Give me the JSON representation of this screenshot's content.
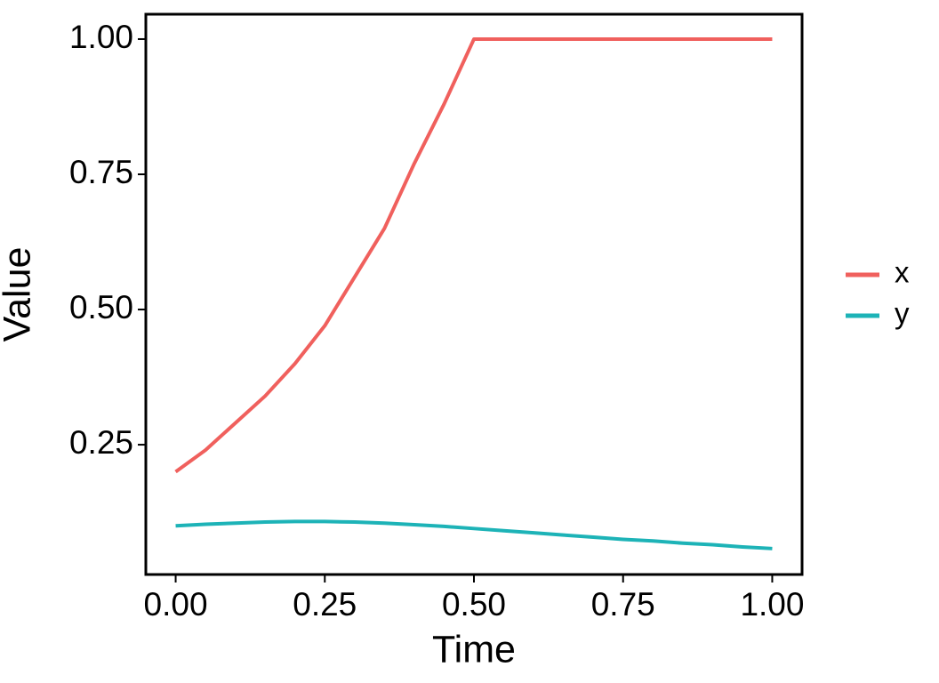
{
  "chart_data": {
    "type": "line",
    "x_label": "Time",
    "y_label": "Value",
    "x": [
      0,
      0.05,
      0.1,
      0.15,
      0.2,
      0.25,
      0.3,
      0.35,
      0.4,
      0.45,
      0.5,
      0.55,
      0.6,
      0.65,
      0.7,
      0.75,
      0.8,
      0.85,
      0.9,
      0.95,
      1.0
    ],
    "series": [
      {
        "name": "x",
        "color": "#f0605d",
        "values": [
          0.2,
          0.24,
          0.29,
          0.34,
          0.4,
          0.47,
          0.56,
          0.65,
          0.77,
          0.88,
          1.0,
          1.0,
          1.0,
          1.0,
          1.0,
          1.0,
          1.0,
          1.0,
          1.0,
          1.0,
          1.0
        ]
      },
      {
        "name": "y",
        "color": "#1db3b7",
        "values": [
          0.1,
          0.103,
          0.105,
          0.107,
          0.108,
          0.108,
          0.107,
          0.105,
          0.102,
          0.099,
          0.095,
          0.091,
          0.087,
          0.083,
          0.079,
          0.075,
          0.072,
          0.068,
          0.065,
          0.061,
          0.058
        ]
      }
    ],
    "xlim": [
      -0.05,
      1.05
    ],
    "ylim": [
      0.01,
      1.046
    ],
    "xticks": [
      {
        "value": 0,
        "label": "0.00"
      },
      {
        "value": 0.25,
        "label": "0.25"
      },
      {
        "value": 0.5,
        "label": "0.50"
      },
      {
        "value": 0.75,
        "label": "0.75"
      },
      {
        "value": 1,
        "label": "1.00"
      }
    ],
    "yticks": [
      {
        "value": 0.25,
        "label": "0.25"
      },
      {
        "value": 0.5,
        "label": "0.50"
      },
      {
        "value": 0.75,
        "label": "0.75"
      },
      {
        "value": 1,
        "label": "1.00"
      }
    ],
    "grid": false,
    "legend": "right"
  }
}
